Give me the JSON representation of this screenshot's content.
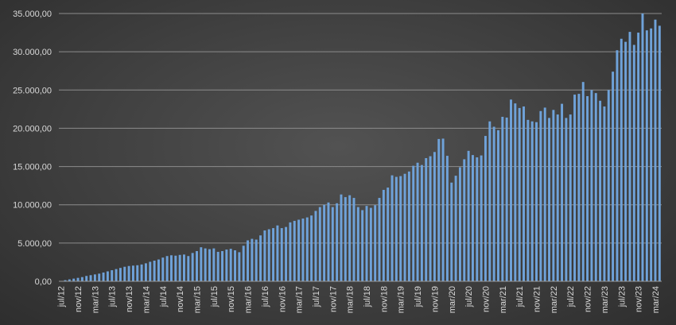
{
  "chart_data": {
    "type": "bar",
    "title": "",
    "xlabel": "",
    "ylabel": "",
    "ylim": [
      0,
      35000
    ],
    "y_ticks": [
      "0,00",
      "5.000,00",
      "10.000,00",
      "15.000,00",
      "20.000,00",
      "25.000,00",
      "30.000,00",
      "35.000,00"
    ],
    "grid": true,
    "legend": "none",
    "bar_color": "#6fa2d9",
    "categories": [
      "jul/12",
      "ago/12",
      "set/12",
      "out/12",
      "nov/12",
      "dez/12",
      "jan/13",
      "fev/13",
      "mar/13",
      "abr/13",
      "mai/13",
      "jun/13",
      "jul/13",
      "ago/13",
      "set/13",
      "out/13",
      "nov/13",
      "dez/13",
      "jan/14",
      "fev/14",
      "mar/14",
      "abr/14",
      "mai/14",
      "jun/14",
      "jul/14",
      "ago/14",
      "set/14",
      "out/14",
      "nov/14",
      "dez/14",
      "jan/15",
      "fev/15",
      "mar/15",
      "abr/15",
      "mai/15",
      "jun/15",
      "jul/15",
      "ago/15",
      "set/15",
      "out/15",
      "nov/15",
      "dez/15",
      "jan/16",
      "fev/16",
      "mar/16",
      "abr/16",
      "mai/16",
      "jun/16",
      "jul/16",
      "ago/16",
      "set/16",
      "out/16",
      "nov/16",
      "dez/16",
      "jan/17",
      "fev/17",
      "mar/17",
      "abr/17",
      "mai/17",
      "jun/17",
      "jul/17",
      "ago/17",
      "set/17",
      "out/17",
      "nov/17",
      "dez/17",
      "jan/18",
      "fev/18",
      "mar/18",
      "abr/18",
      "mai/18",
      "jun/18",
      "jul/18",
      "ago/18",
      "set/18",
      "out/18",
      "nov/18",
      "dez/18",
      "jan/19",
      "fev/19",
      "mar/19",
      "abr/19",
      "mai/19",
      "jun/19",
      "jul/19",
      "ago/19",
      "set/19",
      "out/19",
      "nov/19",
      "dez/19",
      "jan/20",
      "fev/20",
      "mar/20",
      "abr/20",
      "mai/20",
      "jun/20",
      "jul/20",
      "ago/20",
      "set/20",
      "out/20",
      "nov/20",
      "dez/20",
      "jan/21",
      "fev/21",
      "mar/21",
      "abr/21",
      "mai/21",
      "jun/21",
      "jul/21",
      "ago/21",
      "set/21",
      "out/21",
      "nov/21",
      "dez/21",
      "jan/22",
      "fev/22",
      "mar/22",
      "abr/22",
      "mai/22",
      "jun/22",
      "jul/22",
      "ago/22",
      "set/22",
      "out/22",
      "nov/22",
      "dez/22",
      "jan/23",
      "fev/23",
      "mar/23",
      "abr/23",
      "mai/23",
      "jun/23",
      "jul/23",
      "ago/23",
      "set/23",
      "out/23",
      "nov/23",
      "dez/23",
      "jan/24",
      "fev/24",
      "mar/24",
      "abr/24"
    ],
    "x_tick_labels": [
      "jul/12",
      "nov/12",
      "mar/13",
      "jul/13",
      "nov/13",
      "mar/14",
      "jul/14",
      "nov/14",
      "mar/15",
      "jul/15",
      "nov/15",
      "mar/16",
      "jul/16",
      "nov/16",
      "mar/17",
      "jul/17",
      "nov/17",
      "mar/18",
      "jul/18",
      "nov/18",
      "mar/19",
      "jul/19",
      "nov/19",
      "mar/20",
      "jul/20",
      "nov/20",
      "mar/21",
      "jul/21",
      "nov/21",
      "mar/22",
      "jul/22",
      "nov/22",
      "mar/23",
      "jul/23",
      "nov/23",
      "mar/24"
    ],
    "values": [
      50,
      150,
      250,
      350,
      450,
      550,
      700,
      800,
      900,
      1000,
      1150,
      1300,
      1450,
      1600,
      1750,
      1900,
      2000,
      2050,
      2100,
      2200,
      2350,
      2550,
      2700,
      2850,
      3100,
      3300,
      3400,
      3350,
      3450,
      3500,
      3300,
      3700,
      3950,
      4450,
      4300,
      4200,
      4300,
      3850,
      3950,
      4150,
      4250,
      4050,
      3800,
      4650,
      5350,
      5550,
      5450,
      6000,
      6650,
      6800,
      6950,
      7300,
      6950,
      7100,
      7700,
      7900,
      8050,
      8200,
      8350,
      8600,
      9200,
      9700,
      10000,
      10300,
      9700,
      10200,
      11350,
      11000,
      11250,
      10900,
      9700,
      9300,
      9850,
      9600,
      9950,
      10900,
      11950,
      12250,
      13850,
      13650,
      13750,
      14050,
      14350,
      15100,
      15500,
      15200,
      16100,
      16350,
      16900,
      18600,
      18650,
      16400,
      12900,
      13800,
      14900,
      15950,
      17050,
      16500,
      16200,
      16450,
      19000,
      20900,
      20200,
      19750,
      21500,
      21400,
      23750,
      23250,
      22650,
      22850,
      21100,
      20900,
      20800,
      22250,
      22700,
      21350,
      22400,
      21800,
      23200,
      21350,
      21800,
      24400,
      24500,
      26050,
      24200,
      25000,
      24600,
      23600,
      22850,
      25000,
      27400,
      30200,
      31700,
      31300,
      32600,
      30900,
      32500,
      35000,
      32800,
      33050,
      34200,
      33400
    ]
  }
}
